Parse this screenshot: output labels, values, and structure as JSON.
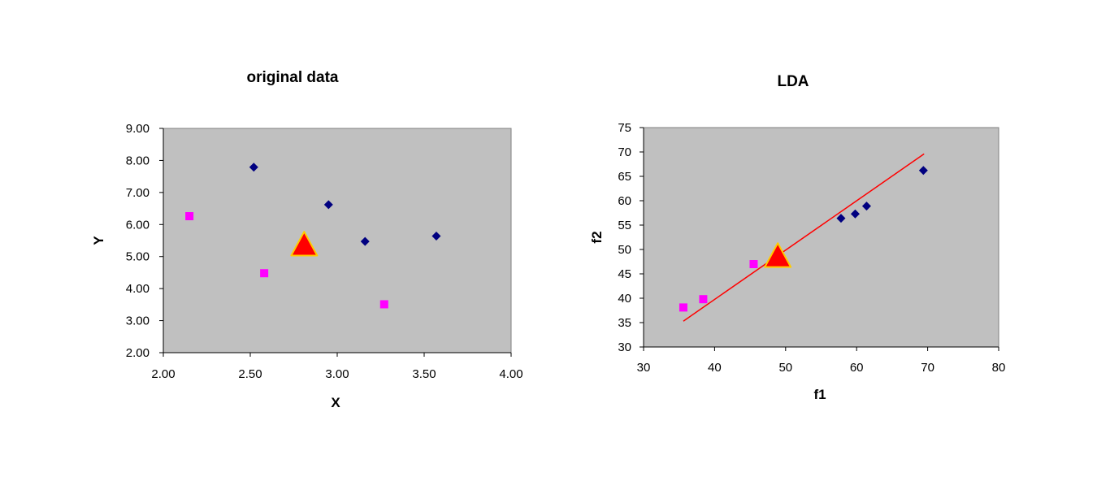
{
  "chart_data": [
    {
      "type": "scatter",
      "title": "original data",
      "xlabel": "X",
      "ylabel": "Y",
      "xlim": [
        2.0,
        4.0
      ],
      "ylim": [
        2.0,
        9.0
      ],
      "x_ticks": [
        "2.00",
        "2.50",
        "3.00",
        "3.50",
        "4.00"
      ],
      "y_ticks": [
        "2.00",
        "3.00",
        "4.00",
        "5.00",
        "6.00",
        "7.00",
        "8.00",
        "9.00"
      ],
      "x_tick_values": [
        2.0,
        2.5,
        3.0,
        3.5,
        4.0
      ],
      "y_tick_values": [
        2.0,
        3.0,
        4.0,
        5.0,
        6.0,
        7.0,
        8.0,
        9.0
      ],
      "plot_background": "#c0c0c0",
      "series": [
        {
          "marker": "diamond",
          "color": "#000080",
          "points": [
            [
              2.52,
              7.79
            ],
            [
              2.95,
              6.62
            ],
            [
              3.16,
              5.47
            ],
            [
              3.57,
              5.64
            ]
          ]
        },
        {
          "marker": "square",
          "color": "#ff00ff",
          "points": [
            [
              2.15,
              6.26
            ],
            [
              2.58,
              4.48
            ],
            [
              3.27,
              3.51
            ]
          ]
        },
        {
          "marker": "triangle",
          "color": "#ff0000",
          "edge_color": "#ffcc00",
          "points": [
            [
              2.81,
              5.35
            ]
          ]
        }
      ]
    },
    {
      "type": "scatter",
      "title": "LDA",
      "xlabel": "f1",
      "ylabel": "f2",
      "xlim": [
        30,
        80
      ],
      "ylim": [
        30,
        75
      ],
      "x_ticks": [
        "30",
        "40",
        "50",
        "60",
        "70",
        "80"
      ],
      "y_ticks": [
        "30",
        "35",
        "40",
        "45",
        "50",
        "55",
        "60",
        "65",
        "70",
        "75"
      ],
      "x_tick_values": [
        30,
        40,
        50,
        60,
        70,
        80
      ],
      "y_tick_values": [
        30,
        35,
        40,
        45,
        50,
        55,
        60,
        65,
        70,
        75
      ],
      "plot_background": "#c0c0c0",
      "series": [
        {
          "marker": "diamond",
          "color": "#000080",
          "points": [
            [
              57.8,
              56.4
            ],
            [
              59.8,
              57.3
            ],
            [
              61.4,
              58.9
            ],
            [
              69.4,
              66.2
            ]
          ]
        },
        {
          "marker": "square",
          "color": "#ff00ff",
          "points": [
            [
              35.6,
              38.1
            ],
            [
              38.4,
              39.8
            ],
            [
              45.5,
              47.0
            ]
          ]
        },
        {
          "marker": "triangle",
          "color": "#ff0000",
          "edge_color": "#ffcc00",
          "points": [
            [
              48.9,
              48.5
            ]
          ]
        }
      ],
      "line": {
        "color": "#ff0000",
        "points": [
          [
            35.6,
            35.3
          ],
          [
            69.5,
            69.6
          ]
        ]
      }
    }
  ]
}
